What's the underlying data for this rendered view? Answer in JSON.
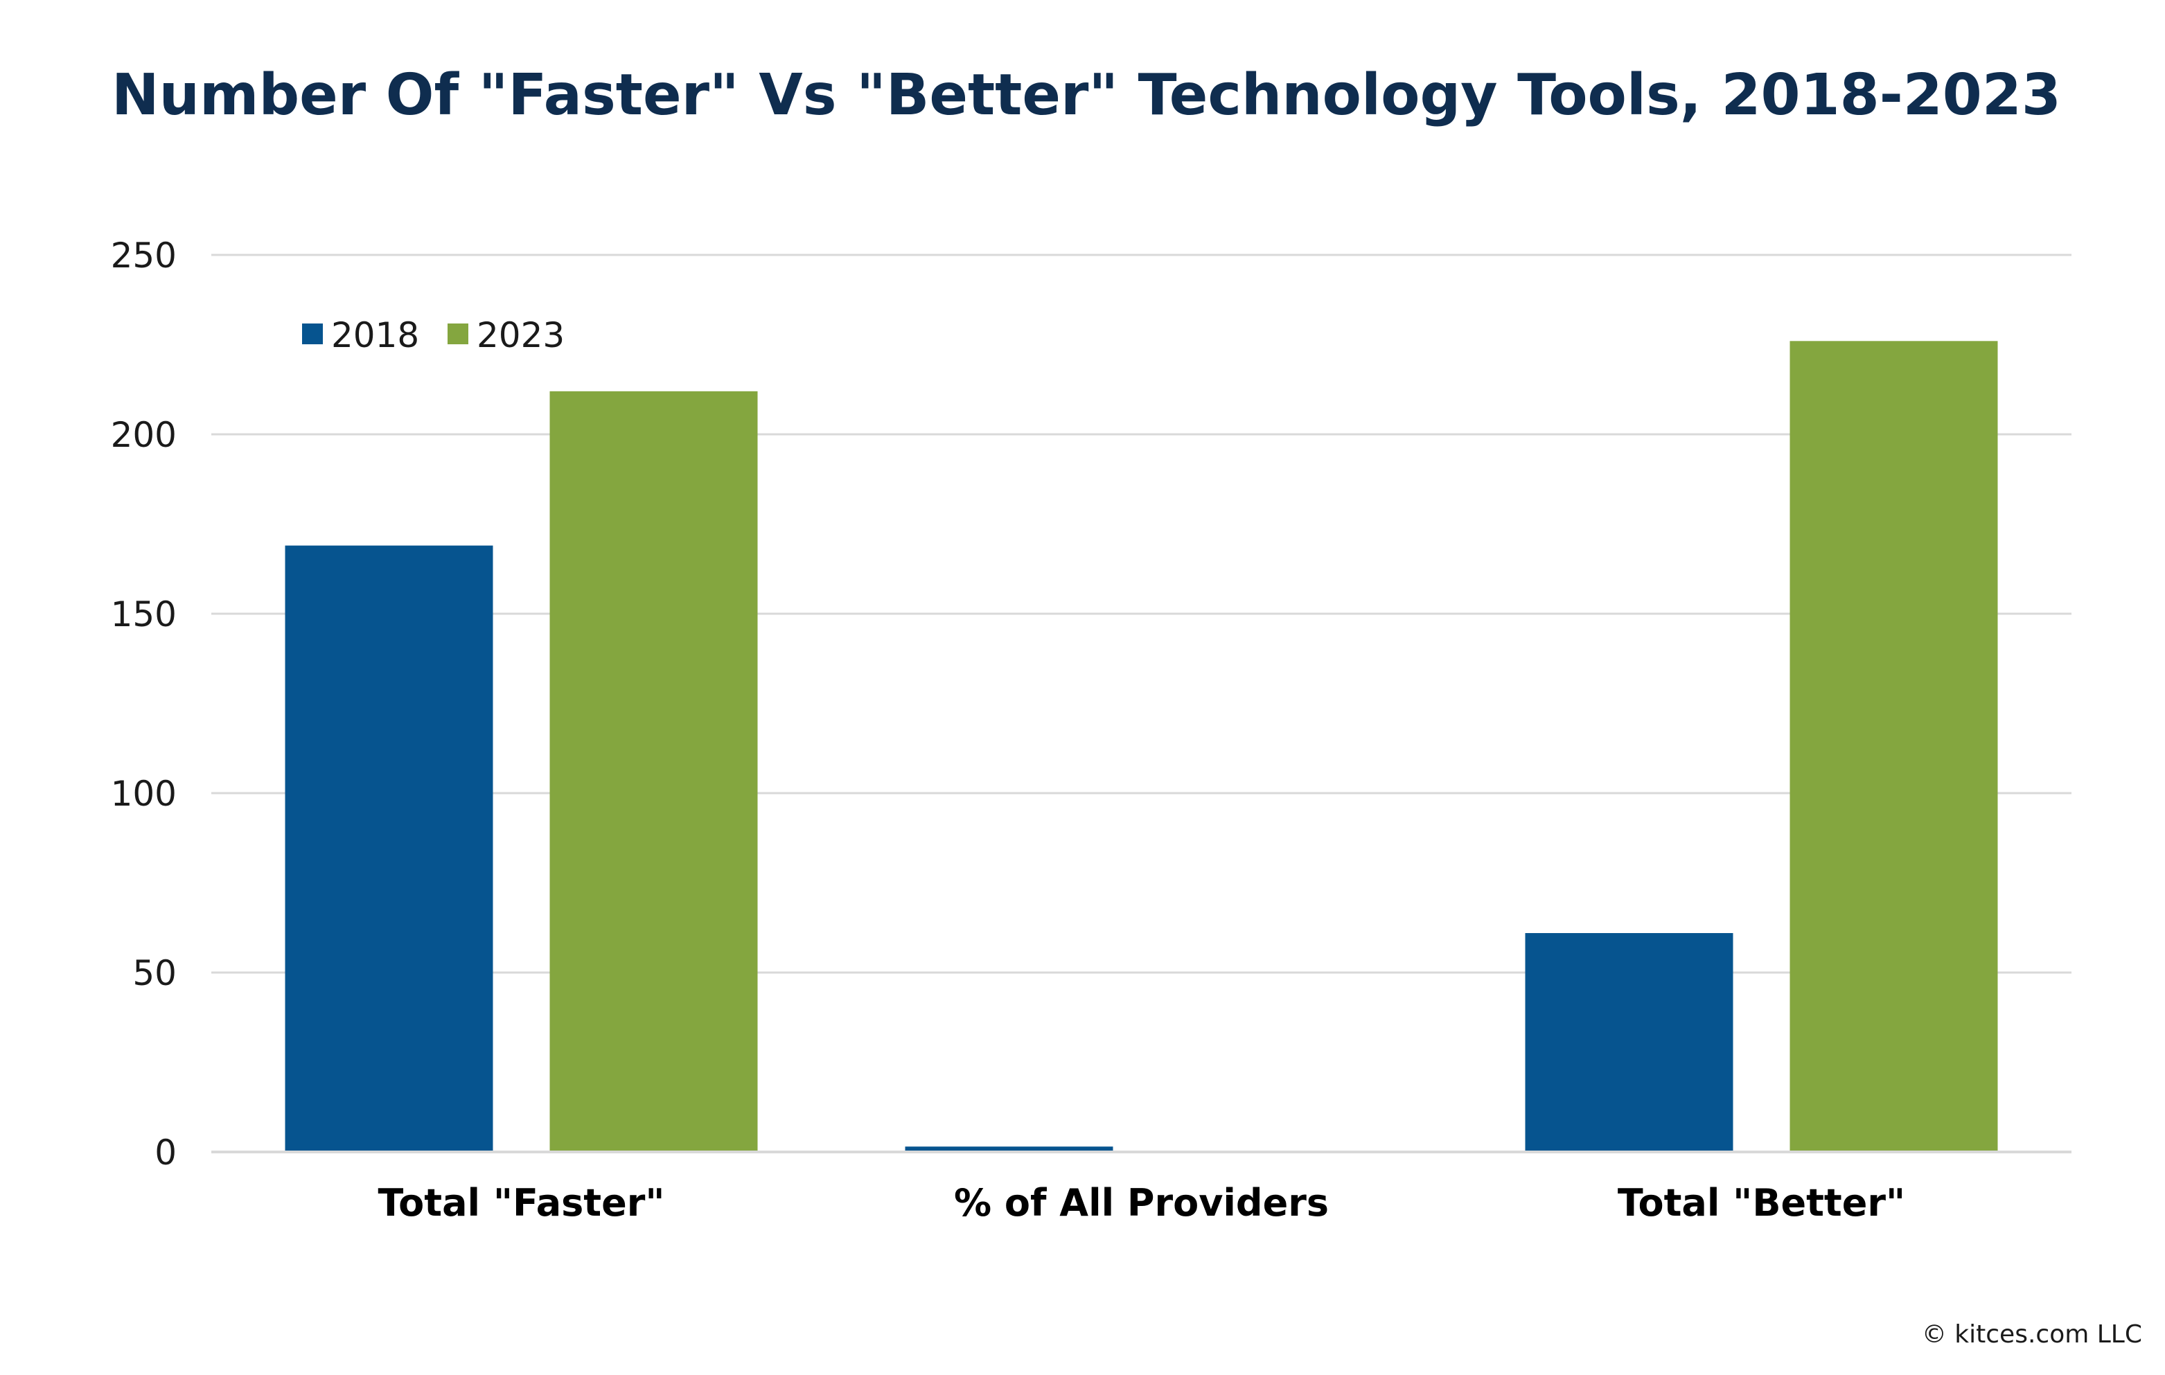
{
  "chart_data": {
    "type": "bar",
    "title": "Number Of \"Faster\" Vs \"Better\" Technology Tools, 2018-2023",
    "categories": [
      "Total \"Faster\"",
      "% of All Providers",
      "Total \"Better\""
    ],
    "series": [
      {
        "name": "2018",
        "values": [
          169,
          1.5,
          61
        ],
        "color": "#06548f"
      },
      {
        "name": "2023",
        "values": [
          212,
          0,
          226
        ],
        "color": "#84a63f"
      }
    ],
    "ylim": [
      0,
      250
    ],
    "yticks": [
      "0",
      "50",
      "100",
      "150",
      "200",
      "250"
    ],
    "ytick_values": [
      0,
      50,
      100,
      150,
      200,
      250
    ],
    "grid": true,
    "legend_position": "top-left",
    "gridline_color": "#d9d9d9"
  },
  "footer": {
    "credit": "© kitces.com LLC"
  }
}
